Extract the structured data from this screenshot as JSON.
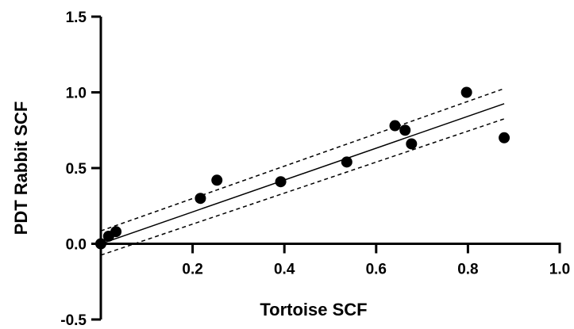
{
  "chart_data": {
    "type": "scatter",
    "xlabel": "Tortoise SCF",
    "ylabel": "PDT Rabbit SCF",
    "xlim": [
      0.0,
      1.0
    ],
    "ylim": [
      -0.5,
      1.5
    ],
    "x_ticks": [
      {
        "value": 0.2,
        "label": "0.2"
      },
      {
        "value": 0.4,
        "label": "0.4"
      },
      {
        "value": 0.6,
        "label": "0.6"
      },
      {
        "value": 0.8,
        "label": "0.8"
      },
      {
        "value": 1.0,
        "label": "1.0"
      }
    ],
    "y_ticks": [
      {
        "value": -0.5,
        "label": "-0.5"
      },
      {
        "value": 0.0,
        "label": "0.0"
      },
      {
        "value": 0.5,
        "label": "0.5"
      },
      {
        "value": 1.0,
        "label": "1.0"
      },
      {
        "value": 1.5,
        "label": "1.5"
      }
    ],
    "grid": false,
    "points": [
      {
        "x": 0.0,
        "y": 0.0
      },
      {
        "x": 0.017,
        "y": 0.05
      },
      {
        "x": 0.033,
        "y": 0.08
      },
      {
        "x": 0.217,
        "y": 0.3
      },
      {
        "x": 0.253,
        "y": 0.42
      },
      {
        "x": 0.392,
        "y": 0.41
      },
      {
        "x": 0.536,
        "y": 0.54
      },
      {
        "x": 0.641,
        "y": 0.78
      },
      {
        "x": 0.663,
        "y": 0.75
      },
      {
        "x": 0.677,
        "y": 0.66
      },
      {
        "x": 0.797,
        "y": 1.0
      },
      {
        "x": 0.879,
        "y": 0.7
      }
    ],
    "fit_line": {
      "x": [
        0.0,
        0.879
      ],
      "y": [
        0.0,
        0.925
      ]
    },
    "confidence_band": {
      "upper": {
        "x": [
          0.0,
          0.879
        ],
        "y": [
          0.085,
          1.025
        ]
      },
      "lower": {
        "x": [
          0.0,
          0.879
        ],
        "y": [
          -0.075,
          0.825
        ]
      }
    }
  }
}
